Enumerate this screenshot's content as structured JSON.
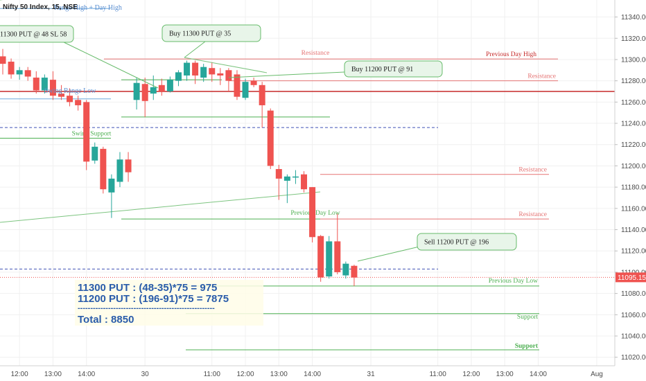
{
  "symbol_title": "Nifty 50 Index, 15, NSE",
  "colors": {
    "up": "#26a69a",
    "down": "#ef5350",
    "resistance": "#e57373",
    "support": "#4caf50",
    "previous_day_high": "#c62828",
    "dashed_blue": "#3f51b5",
    "last_price": "#ef5350",
    "annotation_text": "#2a5caa",
    "callout_fill": "#e8f5e9",
    "callout_border": "#66bb6a"
  },
  "chart_data": {
    "type": "candlestick",
    "title": "Nifty 50 Index, 15, NSE",
    "ylim": [
      11012,
      11356
    ],
    "price_ticks": [
      11340,
      11320,
      11300,
      11280,
      11260,
      11240,
      11220,
      11200,
      11180,
      11160,
      11140,
      11120,
      11100,
      11080,
      11060,
      11040,
      11020
    ],
    "time_ticks": [
      {
        "label": "12:00",
        "bar": 2
      },
      {
        "label": "13:00",
        "bar": 6
      },
      {
        "label": "14:00",
        "bar": 10
      },
      {
        "label": "30",
        "bar": 17
      },
      {
        "label": "11:00",
        "bar": 25
      },
      {
        "label": "12:00",
        "bar": 29
      },
      {
        "label": "13:00",
        "bar": 33
      },
      {
        "label": "14:00",
        "bar": 37
      },
      {
        "label": "31",
        "bar": 44
      },
      {
        "label": "11:00",
        "bar": 52
      },
      {
        "label": "12:00",
        "bar": 56
      },
      {
        "label": "13:00",
        "bar": 60
      },
      {
        "label": "14:00",
        "bar": 64
      },
      {
        "label": "Aug",
        "bar": 71
      }
    ],
    "candles": [
      {
        "bar": 0,
        "o": 11303,
        "h": 11310,
        "l": 11286,
        "c": 11296
      },
      {
        "bar": 1,
        "o": 11298,
        "h": 11301,
        "l": 11282,
        "c": 11286
      },
      {
        "bar": 2,
        "o": 11286,
        "h": 11293,
        "l": 11281,
        "c": 11290
      },
      {
        "bar": 3,
        "o": 11290,
        "h": 11293,
        "l": 11280,
        "c": 11284
      },
      {
        "bar": 4,
        "o": 11283,
        "h": 11289,
        "l": 11268,
        "c": 11271
      },
      {
        "bar": 5,
        "o": 11271,
        "h": 11286,
        "l": 11268,
        "c": 11283
      },
      {
        "bar": 6,
        "o": 11281,
        "h": 11289,
        "l": 11262,
        "c": 11266
      },
      {
        "bar": 7,
        "o": 11268,
        "h": 11276,
        "l": 11262,
        "c": 11265
      },
      {
        "bar": 8,
        "o": 11266,
        "h": 11273,
        "l": 11256,
        "c": 11260
      },
      {
        "bar": 9,
        "o": 11262,
        "h": 11266,
        "l": 11252,
        "c": 11257
      },
      {
        "bar": 10,
        "o": 11260,
        "h": 11262,
        "l": 11196,
        "c": 11204
      },
      {
        "bar": 11,
        "o": 11205,
        "h": 11222,
        "l": 11202,
        "c": 11218
      },
      {
        "bar": 12,
        "o": 11216,
        "h": 11218,
        "l": 11174,
        "c": 11178
      },
      {
        "bar": 13,
        "o": 11175,
        "h": 11192,
        "l": 11151,
        "c": 11188
      },
      {
        "bar": 14,
        "o": 11185,
        "h": 11213,
        "l": 11180,
        "c": 11206
      },
      {
        "bar": 15,
        "o": 11206,
        "h": 11213,
        "l": 11185,
        "c": 11194
      },
      {
        "bar": 16,
        "o": 11262,
        "h": 11283,
        "l": 11253,
        "c": 11278
      },
      {
        "bar": 17,
        "o": 11277,
        "h": 11283,
        "l": 11246,
        "c": 11261
      },
      {
        "bar": 18,
        "o": 11268,
        "h": 11285,
        "l": 11262,
        "c": 11274
      },
      {
        "bar": 19,
        "o": 11276,
        "h": 11282,
        "l": 11266,
        "c": 11270
      },
      {
        "bar": 20,
        "o": 11270,
        "h": 11284,
        "l": 11269,
        "c": 11281
      },
      {
        "bar": 21,
        "o": 11280,
        "h": 11290,
        "l": 11275,
        "c": 11288
      },
      {
        "bar": 22,
        "o": 11285,
        "h": 11299,
        "l": 11280,
        "c": 11297
      },
      {
        "bar": 23,
        "o": 11297,
        "h": 11299,
        "l": 11277,
        "c": 11285
      },
      {
        "bar": 24,
        "o": 11283,
        "h": 11296,
        "l": 11279,
        "c": 11293
      },
      {
        "bar": 25,
        "o": 11292,
        "h": 11297,
        "l": 11279,
        "c": 11286
      },
      {
        "bar": 26,
        "o": 11287,
        "h": 11292,
        "l": 11276,
        "c": 11285
      },
      {
        "bar": 27,
        "o": 11290,
        "h": 11292,
        "l": 11270,
        "c": 11280
      },
      {
        "bar": 28,
        "o": 11286,
        "h": 11290,
        "l": 11262,
        "c": 11265
      },
      {
        "bar": 29,
        "o": 11264,
        "h": 11282,
        "l": 11262,
        "c": 11279
      },
      {
        "bar": 30,
        "o": 11280,
        "h": 11283,
        "l": 11274,
        "c": 11276
      },
      {
        "bar": 31,
        "o": 11276,
        "h": 11279,
        "l": 11236,
        "c": 11257
      },
      {
        "bar": 32,
        "o": 11252,
        "h": 11254,
        "l": 11197,
        "c": 11200
      },
      {
        "bar": 33,
        "o": 11197,
        "h": 11201,
        "l": 11168,
        "c": 11188
      },
      {
        "bar": 34,
        "o": 11186,
        "h": 11192,
        "l": 11165,
        "c": 11190
      },
      {
        "bar": 35,
        "o": 11189,
        "h": 11196,
        "l": 11183,
        "c": 11190
      },
      {
        "bar": 36,
        "o": 11192,
        "h": 11195,
        "l": 11175,
        "c": 11178
      },
      {
        "bar": 37,
        "o": 11180,
        "h": 11180,
        "l": 11128,
        "c": 11133
      },
      {
        "bar": 38,
        "o": 11134,
        "h": 11135,
        "l": 11091,
        "c": 11095
      },
      {
        "bar": 39,
        "o": 11096,
        "h": 11134,
        "l": 11094,
        "c": 11129
      },
      {
        "bar": 40,
        "o": 11129,
        "h": 11155,
        "l": 11098,
        "c": 11100
      },
      {
        "bar": 41,
        "o": 11097,
        "h": 11110,
        "l": 11094,
        "c": 11108
      },
      {
        "bar": 42,
        "o": 11106,
        "h": 11107,
        "l": 11087,
        "c": 11095
      }
    ],
    "last_price": 11095.15
  },
  "levels": [
    {
      "id": "previous-day-high",
      "label": "Previous Day High",
      "price": 11300.5,
      "kind": "pdh"
    },
    {
      "id": "resistance-1",
      "label": "Resistance",
      "price": 11300.5,
      "kind": "resistance"
    },
    {
      "id": "resistance-2",
      "label": "Resistance",
      "price": 11280,
      "kind": "resistance"
    },
    {
      "id": "resistance-3",
      "label": "Resistance",
      "price": 11192,
      "kind": "resistance"
    },
    {
      "id": "resistance-4",
      "label": "Resistance",
      "price": 11150,
      "kind": "resistance"
    },
    {
      "id": "previous-day-low",
      "label": "Previous Day Low",
      "price": 11150,
      "kind": "support"
    },
    {
      "id": "previous-day-low-2",
      "label": "Previous Day Low",
      "price": 11087,
      "kind": "support"
    },
    {
      "id": "support-1",
      "label": "Support",
      "price": 11061,
      "kind": "support"
    },
    {
      "id": "support-2",
      "label": "Support",
      "price": 11027,
      "kind": "support"
    },
    {
      "id": "swing-support",
      "label": "Swing Support",
      "price": 11226,
      "kind": "support"
    }
  ],
  "top_left_labels": {
    "range_high": "Range High + Day High",
    "range_low": "Swing Range Low"
  },
  "callouts": [
    {
      "id": "put-48",
      "text": "11300 PUT @ 48 SL 58"
    },
    {
      "id": "buy-11300",
      "text": "Buy 11300 PUT @ 35"
    },
    {
      "id": "buy-11200",
      "text": "Buy 11200 PUT @ 91"
    },
    {
      "id": "sell-11200",
      "text": "Sell 11200 PUT @ 196"
    }
  ],
  "pnl": {
    "line1": "11300 PUT :  (48-35)*75 = 975",
    "line2": "11200 PUT : (196-91)*75 = 7875",
    "divider": "------------------------------------------------------",
    "total": "Total :  8850"
  }
}
